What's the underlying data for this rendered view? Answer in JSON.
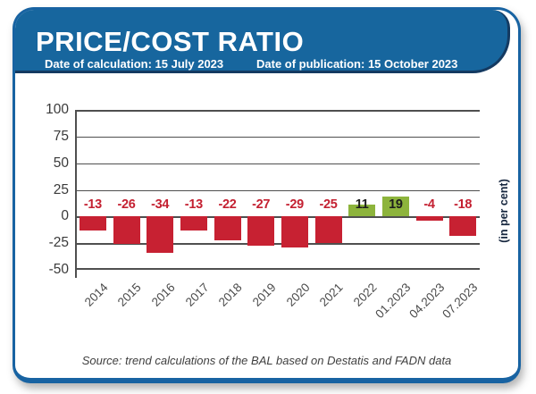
{
  "header": {
    "title": "PRICE/COST RATIO",
    "calculation_date": "Date of calculation: 15 July 2023",
    "publication_date": "Date of publication: 15 October 2023"
  },
  "chart_data": {
    "type": "bar",
    "categories": [
      "2014",
      "2015",
      "2016",
      "2017",
      "2018",
      "2019",
      "2020",
      "2021",
      "2022",
      "01.2023",
      "04.2023",
      "07.2023"
    ],
    "values": [
      -13,
      -26,
      -34,
      -13,
      -22,
      -27,
      -29,
      -25,
      11,
      19,
      -4,
      -18
    ],
    "title": "",
    "xlabel": "",
    "ylabel": "(in per cent)",
    "unit_label": "(in per cent)",
    "ylim": [
      -50,
      100
    ],
    "yticks": [
      100,
      75,
      50,
      25,
      0,
      -25,
      -50
    ],
    "grid": true,
    "legend": "none",
    "colors": {
      "negative_bar": "#c72132",
      "positive_bar": "#8db43c",
      "negative_label": "#c42031",
      "positive_label": "#1d1d1d",
      "gridline": "#4f4f4f",
      "header_blue": "#17669e",
      "header_outline_navy": "#143a61",
      "card_border_blue": "#1863a2"
    }
  },
  "footer": {
    "source": "Source: trend calculations of the BAL based on Destatis and FADN data"
  }
}
